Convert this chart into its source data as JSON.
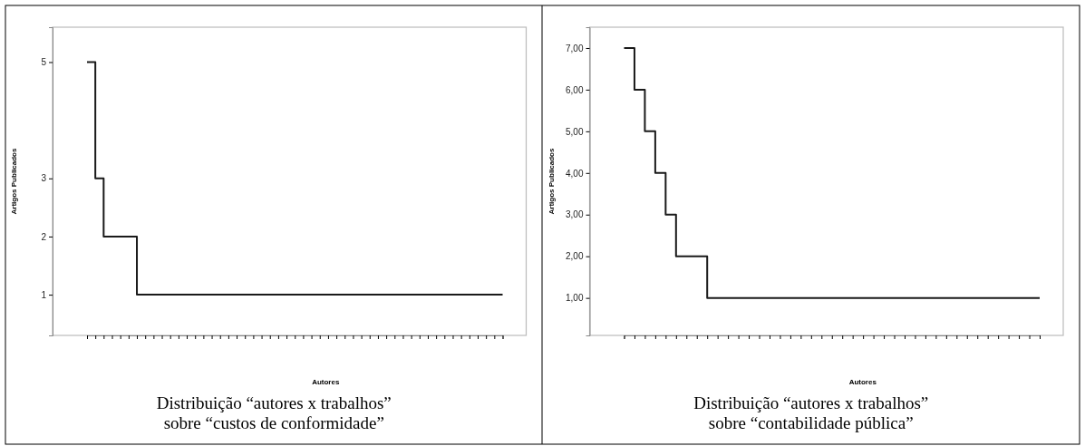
{
  "chart_data": [
    {
      "type": "step",
      "title": "Distribuição “autores x trabalhos” sobre “custos de conformidade”",
      "xlabel": "Autores",
      "ylabel": "Artigos Publicados",
      "line_style": "solid",
      "grid": false,
      "categories": [
        null,
        null,
        null,
        null,
        null,
        null,
        null,
        null,
        null,
        null,
        null,
        null,
        null,
        null,
        null,
        null,
        null,
        null,
        null,
        null,
        null,
        null,
        null,
        null,
        null,
        null,
        null,
        null,
        null,
        null,
        null,
        null,
        null,
        null,
        null,
        null,
        null,
        null,
        null,
        null,
        null,
        null,
        null,
        null,
        null,
        null,
        null,
        null,
        null,
        null,
        null
      ],
      "series": [
        {
          "color": "#1a1a1a",
          "values": [
            5,
            3,
            2,
            2,
            2,
            2,
            1,
            1,
            1,
            1,
            1,
            1,
            1,
            1,
            1,
            1,
            1,
            1,
            1,
            1,
            1,
            1,
            1,
            1,
            1,
            1,
            1,
            1,
            1,
            1,
            1,
            1,
            1,
            1,
            1,
            1,
            1,
            1,
            1,
            1,
            1,
            1,
            1,
            1,
            1,
            1,
            1,
            1,
            1,
            1,
            1
          ]
        }
      ],
      "ylim": [
        0.3,
        5.6
      ],
      "yticks": [
        1,
        2,
        3,
        5
      ]
    },
    {
      "type": "step",
      "title": "Distribuição “autores x trabalhos” sobre “contabilidade pública”",
      "xlabel": "Autores",
      "ylabel": "Artigos Publicados",
      "line_style": "solid",
      "grid": false,
      "categories": [
        null,
        null,
        null,
        null,
        null,
        null,
        null,
        null,
        null,
        null,
        null,
        null,
        null,
        null,
        null,
        null,
        null,
        null,
        null,
        null,
        null,
        null,
        null,
        null,
        null,
        null,
        null,
        null,
        null,
        null,
        null,
        null,
        null,
        null,
        null,
        null,
        null,
        null,
        null,
        null,
        null
      ],
      "series": [
        {
          "color": "#1a1a1a",
          "values": [
            7,
            6,
            5,
            4,
            3,
            2,
            2,
            2,
            1,
            1,
            1,
            1,
            1,
            1,
            1,
            1,
            1,
            1,
            1,
            1,
            1,
            1,
            1,
            1,
            1,
            1,
            1,
            1,
            1,
            1,
            1,
            1,
            1,
            1,
            1,
            1,
            1,
            1,
            1,
            1,
            1
          ]
        }
      ],
      "ylim": [
        0.1,
        7.5
      ],
      "yticks": [
        {
          "value": 1,
          "label": "1,00"
        },
        {
          "value": 2,
          "label": "2,00"
        },
        {
          "value": 3,
          "label": "3,00"
        },
        {
          "value": 4,
          "label": "4,00"
        },
        {
          "value": 5,
          "label": "5,00"
        },
        {
          "value": 6,
          "label": "6,00"
        },
        {
          "value": 7,
          "label": "7,00"
        }
      ]
    }
  ]
}
